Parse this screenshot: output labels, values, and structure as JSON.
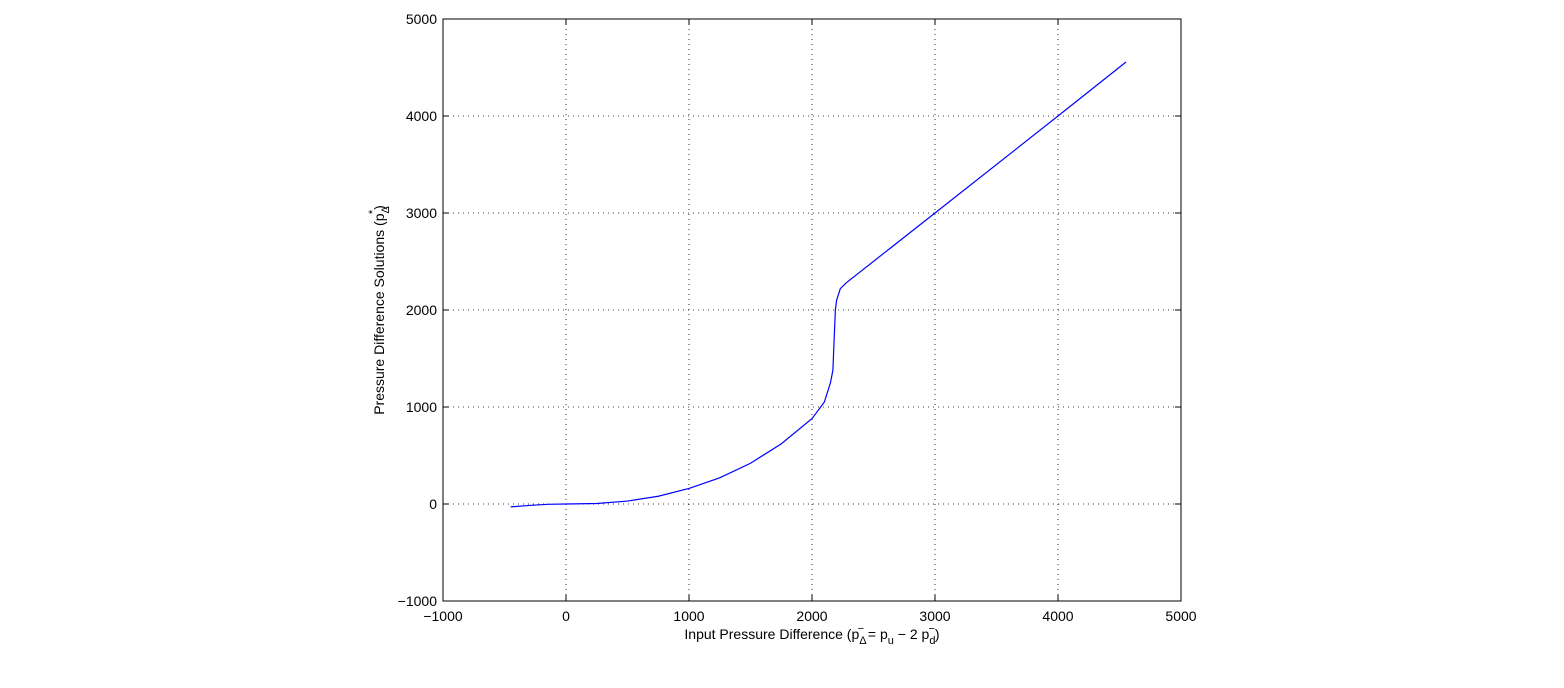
{
  "chart_data": {
    "type": "line",
    "xlabel": [
      "Input Pressure Difference (p",
      "Δ",
      "−",
      " = p",
      "u",
      " − 2 p",
      "d",
      "−",
      ")"
    ],
    "ylabel": [
      "Pressure Difference Solutions (p",
      "Δ",
      "*",
      ")"
    ],
    "x": [
      -450,
      -300,
      -150,
      0,
      250,
      500,
      750,
      1000,
      1250,
      1500,
      1750,
      2000,
      2100,
      2150,
      2170,
      2180,
      2190,
      2200,
      2230,
      2276,
      3000,
      4000,
      4553
    ],
    "series": [
      {
        "color": "#0000ff",
        "values": [
          -30,
          -15,
          -3,
          0,
          5,
          30,
          80,
          160,
          270,
          420,
          620,
          880,
          1050,
          1250,
          1380,
          1700,
          2000,
          2100,
          2220,
          2278,
          3000,
          4000,
          4557
        ]
      }
    ],
    "xlim": [
      -1000,
      5000
    ],
    "xticks": [
      {
        "value": -1000,
        "label": "−1000"
      },
      0,
      1000,
      2000,
      3000,
      4000,
      5000
    ],
    "ylim": [
      -1000,
      5000
    ],
    "yticks": [
      {
        "value": -1000,
        "label": "−1000"
      },
      0,
      1000,
      2000,
      3000,
      4000,
      5000
    ],
    "grid": true
  }
}
